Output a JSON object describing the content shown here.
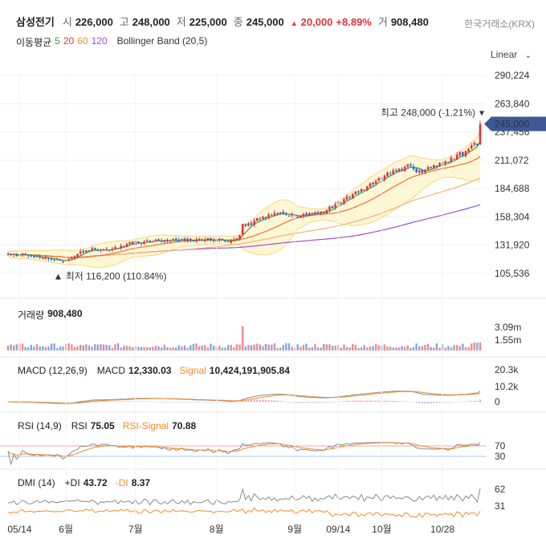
{
  "header": {
    "name": "삼성전기",
    "open_label": "시",
    "open": "226,000",
    "high_label": "고",
    "high": "248,000",
    "low_label": "저",
    "low": "225,000",
    "close_label": "종",
    "close": "245,000",
    "change": "20,000",
    "change_pct": "+8.89%",
    "volume_label": "거",
    "volume": "908,480",
    "exchange": "한국거래소(KRX)",
    "ma_label": "이동평균",
    "ma_periods": [
      "5",
      "20",
      "60",
      "120"
    ],
    "bb_label": "Bollinger Band (20,5)",
    "scale": "Linear"
  },
  "colors": {
    "up": "#e2333a",
    "down": "#2b6fd6",
    "ma5": "#3aa04a",
    "ma20": "#f07030",
    "ma60": "#f6b070",
    "ma120": "#9c4fd8",
    "bb_fill": "#fff6d6",
    "bb_line": "#f7d77a",
    "price_tag": "#3d5a96"
  },
  "chart_data": {
    "type": "candlestick",
    "x_ticks": [
      "05/14",
      "6월",
      "7월",
      "8월",
      "9월",
      "09/14",
      "10월",
      "10/28"
    ],
    "y_ticks": [
      "290,224",
      "263,840",
      "237,456",
      "211,072",
      "184,688",
      "158,304",
      "131,920",
      "105,536"
    ],
    "ylim": [
      105536,
      290224
    ],
    "last_price": "245,000",
    "max_annotation": "최고 248,000 (-1.21%)",
    "min_annotation": "최저 116,200 (110.84%)",
    "closes": [
      124000,
      122800,
      123500,
      121800,
      122500,
      124200,
      123400,
      122100,
      121500,
      120800,
      121600,
      120200,
      119800,
      120600,
      119400,
      118700,
      117900,
      118600,
      117500,
      116800,
      117900,
      118900,
      120400,
      121800,
      123600,
      126100,
      125300,
      127200,
      126400,
      128900,
      127800,
      126500,
      127600,
      126900,
      128200,
      127400,
      128600,
      130100,
      129300,
      131500,
      130600,
      133100,
      134800,
      132900,
      135600,
      134100,
      133200,
      135100,
      136400,
      134700,
      135800,
      137200,
      136100,
      135200,
      136700,
      135600,
      136300,
      137500,
      136800,
      135900,
      137400,
      136200,
      137800,
      136500,
      135700,
      136900,
      137600,
      136400,
      137100,
      138200,
      136800,
      135600,
      136900,
      137800,
      136500,
      135400,
      134800,
      135900,
      137300,
      138400,
      141200,
      151800,
      149600,
      152300,
      150900,
      154700,
      157200,
      155800,
      158600,
      157100,
      160400,
      159600,
      162100,
      160800,
      162600,
      161300,
      160200,
      159100,
      160700,
      158900,
      157800,
      159400,
      161200,
      160100,
      161800,
      160700,
      162500,
      161600,
      163400,
      162200,
      164800,
      167600,
      166300,
      169900,
      172400,
      171100,
      174800,
      177300,
      176200,
      179800,
      182100,
      181000,
      184400,
      183300,
      186900,
      189600,
      188500,
      191800,
      194400,
      193200,
      196900,
      199600,
      198500,
      201900,
      200400,
      203200,
      201800,
      205100,
      207400,
      206000,
      202800,
      199800,
      201600,
      199300,
      202400,
      204800,
      203900,
      206700,
      205300,
      208600,
      207600,
      210200,
      209100,
      213400,
      211800,
      216300,
      218700,
      214900,
      219800,
      221600,
      224900,
      227300,
      225000,
      245000
    ],
    "volume": {
      "label": "거래량",
      "value": "908,480",
      "y_ticks": [
        "3.09m",
        "1.55m"
      ]
    },
    "macd": {
      "label": "MACD (12,26,9)",
      "macd_label": "MACD",
      "macd": "12,330.03",
      "signal_label": "Signal",
      "signal": "10,424,191,905.84",
      "y_ticks": [
        "20.3k",
        "10.2k",
        "0"
      ]
    },
    "rsi": {
      "label": "RSI (14,9)",
      "rsi_label": "RSI",
      "rsi": "75.05",
      "signal_label": "RSI-Signal",
      "signal": "70.88",
      "y_ticks": [
        "70",
        "30"
      ]
    },
    "dmi": {
      "label": "DMI (14)",
      "pdi_label": "+DI",
      "pdi": "43.72",
      "mdi_label": "-DI",
      "mdi": "8.37",
      "y_ticks": [
        "62",
        "31"
      ]
    }
  }
}
